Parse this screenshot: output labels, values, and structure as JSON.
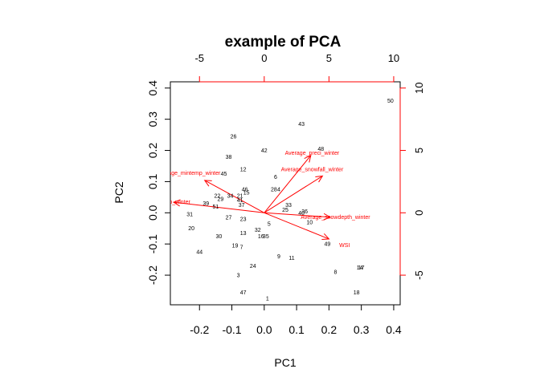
{
  "chart_data": {
    "type": "biplot",
    "title": "example of PCA",
    "xlabel": "PC1",
    "ylabel": "PC2",
    "xlim": [
      -0.29,
      0.42
    ],
    "ylim": [
      -0.295,
      0.42
    ],
    "xticks": [
      "-0.2",
      "-0.1",
      "0.0",
      "0.1",
      "0.2",
      "0.3",
      "0.4"
    ],
    "xtick_values": [
      -0.2,
      -0.1,
      0.0,
      0.1,
      0.2,
      0.3,
      0.4
    ],
    "yticks": [
      "-0.2",
      "-0.1",
      "0.0",
      "0.1",
      "0.2",
      "0.3",
      "0.4"
    ],
    "ytick_values": [
      -0.2,
      -0.1,
      0.0,
      0.1,
      0.2,
      0.3,
      0.4
    ],
    "loading_axis": {
      "xlim": [
        -7.25,
        10.5
      ],
      "ylim": [
        -7.375,
        10.5
      ],
      "ticks": [
        "-5",
        "0",
        "5",
        "10"
      ],
      "tick_values": [
        -5,
        0,
        5,
        10
      ]
    },
    "points": [
      {
        "label": "1",
        "x": 0.01,
        "y": -0.275
      },
      {
        "label": "3",
        "x": -0.08,
        "y": -0.2
      },
      {
        "label": "4",
        "x": 0.045,
        "y": 0.075
      },
      {
        "label": "5",
        "x": 0.015,
        "y": -0.035
      },
      {
        "label": "6",
        "x": 0.035,
        "y": 0.115
      },
      {
        "label": "7",
        "x": -0.07,
        "y": -0.11
      },
      {
        "label": "8",
        "x": 0.22,
        "y": -0.19
      },
      {
        "label": "9",
        "x": 0.045,
        "y": -0.14
      },
      {
        "label": "10",
        "x": 0.14,
        "y": -0.03
      },
      {
        "label": "11",
        "x": 0.085,
        "y": -0.145
      },
      {
        "label": "12",
        "x": -0.065,
        "y": 0.14
      },
      {
        "label": "13",
        "x": -0.065,
        "y": -0.065
      },
      {
        "label": "14",
        "x": 0.295,
        "y": -0.175
      },
      {
        "label": "15",
        "x": -0.055,
        "y": 0.065
      },
      {
        "label": "16",
        "x": -0.01,
        "y": -0.075
      },
      {
        "label": "17",
        "x": 0.3,
        "y": -0.175
      },
      {
        "label": "18",
        "x": 0.285,
        "y": -0.255
      },
      {
        "label": "19",
        "x": -0.09,
        "y": -0.105
      },
      {
        "label": "20",
        "x": -0.225,
        "y": -0.05
      },
      {
        "label": "21",
        "x": -0.075,
        "y": 0.055
      },
      {
        "label": "22",
        "x": -0.145,
        "y": 0.055
      },
      {
        "label": "23",
        "x": -0.065,
        "y": -0.02
      },
      {
        "label": "24",
        "x": -0.035,
        "y": -0.17
      },
      {
        "label": "25",
        "x": 0.065,
        "y": 0.01
      },
      {
        "label": "26",
        "x": -0.095,
        "y": 0.245
      },
      {
        "label": "27",
        "x": -0.11,
        "y": -0.015
      },
      {
        "label": "28",
        "x": 0.03,
        "y": 0.075
      },
      {
        "label": "29",
        "x": -0.135,
        "y": 0.045
      },
      {
        "label": "30",
        "x": -0.14,
        "y": -0.075
      },
      {
        "label": "31",
        "x": -0.23,
        "y": -0.005
      },
      {
        "label": "32",
        "x": -0.02,
        "y": -0.055
      },
      {
        "label": "33",
        "x": 0.075,
        "y": 0.025
      },
      {
        "label": "34",
        "x": -0.105,
        "y": 0.055
      },
      {
        "label": "35",
        "x": 0.005,
        "y": -0.075
      },
      {
        "label": "36",
        "x": 0.125,
        "y": 0.005
      },
      {
        "label": "37",
        "x": -0.07,
        "y": 0.025
      },
      {
        "label": "38",
        "x": -0.11,
        "y": 0.18
      },
      {
        "label": "39",
        "x": -0.18,
        "y": 0.03
      },
      {
        "label": "40",
        "x": 0.115,
        "y": 0.0
      },
      {
        "label": "41",
        "x": -0.075,
        "y": 0.04
      },
      {
        "label": "42",
        "x": 0.0,
        "y": 0.2
      },
      {
        "label": "43",
        "x": 0.115,
        "y": 0.285
      },
      {
        "label": "44",
        "x": -0.2,
        "y": -0.125
      },
      {
        "label": "45",
        "x": -0.125,
        "y": 0.125
      },
      {
        "label": "46",
        "x": -0.06,
        "y": 0.075
      },
      {
        "label": "47",
        "x": -0.065,
        "y": -0.255
      },
      {
        "label": "48",
        "x": 0.175,
        "y": 0.205
      },
      {
        "label": "49",
        "x": 0.195,
        "y": -0.1
      },
      {
        "label": "50",
        "x": 0.39,
        "y": 0.36
      },
      {
        "label": "51",
        "x": -0.15,
        "y": 0.02
      }
    ],
    "loadings": [
      {
        "name": "Average_preci_winter",
        "x": 3.6,
        "y": 4.6
      },
      {
        "name": "Average_snowfall_winter",
        "x": 4.5,
        "y": 2.95
      },
      {
        "name": "Average_mintemp_winter",
        "x": -4.6,
        "y": 2.6
      },
      {
        "name": "Average_maxtemp_winter",
        "x": -7.0,
        "y": 0.85
      },
      {
        "name": "Average_snowdepth_winter",
        "x": 5.1,
        "y": -0.35
      },
      {
        "name": "WSI",
        "x": 5.0,
        "y": -2.1
      }
    ],
    "loading_labels": [
      {
        "text": "Average_preci_winter",
        "anchor": "middle",
        "lx": 3.7,
        "ly": 4.8
      },
      {
        "text": "Average_snowfall_winter",
        "anchor": "middle",
        "lx": 3.7,
        "ly": 3.5
      },
      {
        "text": "age_mintemp_winter",
        "anchor": "middle",
        "lx": -5.4,
        "ly": 3.2
      },
      {
        "text": "maxtemp_winter",
        "anchor": "middle",
        "lx": -7.3,
        "ly": 0.9
      },
      {
        "text": "Average_snowdepth_winter",
        "anchor": "middle",
        "lx": 5.5,
        "ly": -0.35
      },
      {
        "text": "WSI",
        "anchor": "middle",
        "lx": 6.2,
        "ly": -2.6
      }
    ],
    "point_color": "#000000",
    "loading_color": "#ff0000",
    "grid": false
  }
}
